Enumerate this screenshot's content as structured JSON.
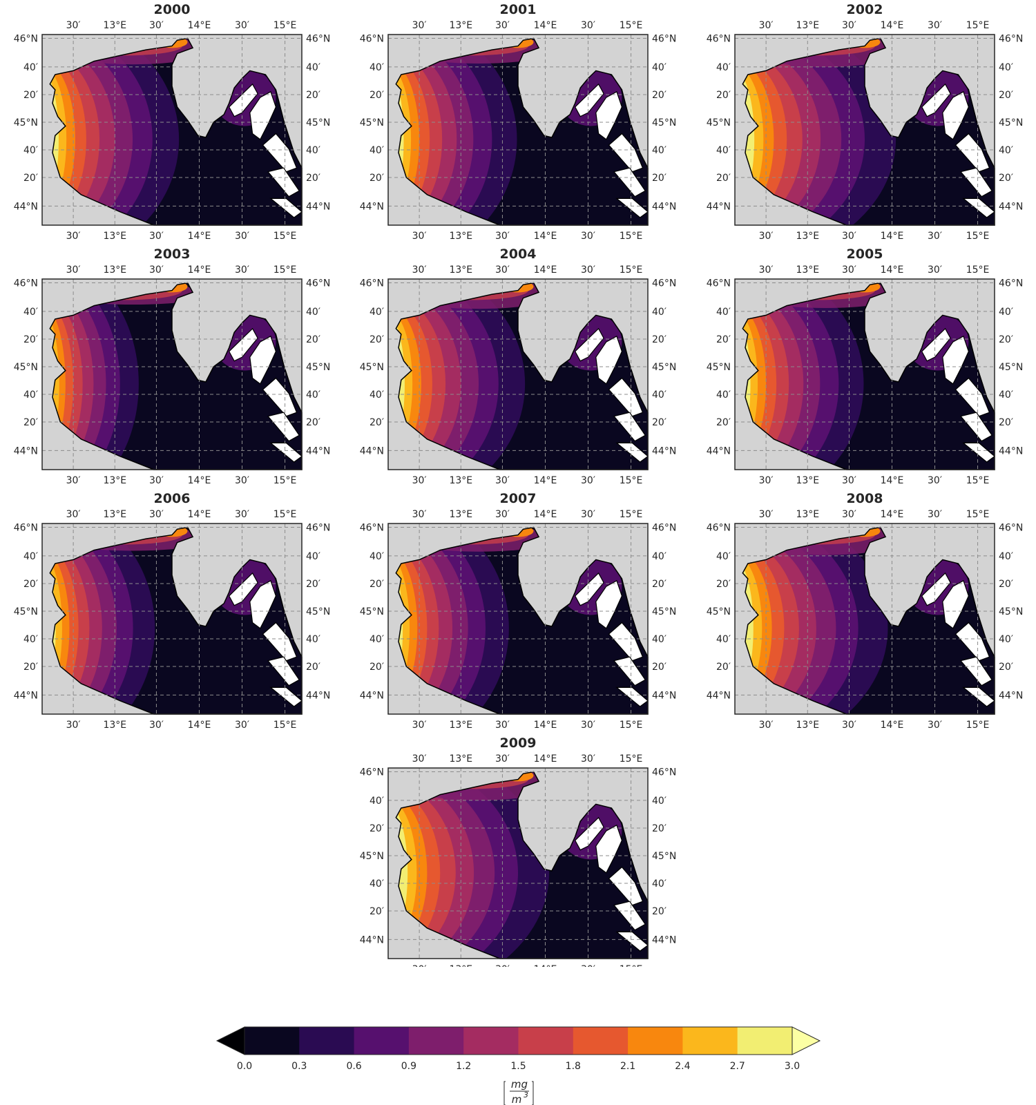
{
  "figure": {
    "years": [
      "2000",
      "2001",
      "2002",
      "2003",
      "2004",
      "2005",
      "2006",
      "2007",
      "2008",
      "2009"
    ],
    "lon_ticks": [
      "30′",
      "13°E",
      "30′",
      "14°E",
      "30′",
      "15°E"
    ],
    "lat_ticks": [
      "46°N",
      "40′",
      "20′",
      "45°N",
      "40′",
      "20′",
      "44°N"
    ],
    "land_color": "#d3d3d3",
    "extent": {
      "lon_min": 12.15,
      "lon_max": 15.25,
      "lat_min": 43.77,
      "lat_max": 46.12
    },
    "plume_intensity": [
      0.85,
      0.8,
      1.0,
      0.6,
      0.85,
      0.8,
      0.7,
      0.75,
      0.95,
      1.0
    ]
  },
  "colorbar": {
    "levels": [
      "0.0",
      "0.3",
      "0.6",
      "0.9",
      "1.2",
      "1.5",
      "1.8",
      "2.1",
      "2.4",
      "2.7",
      "3.0"
    ],
    "colors": [
      "#0a0720",
      "#2a0b52",
      "#56106e",
      "#7e1e6c",
      "#a42c61",
      "#c83f4a",
      "#e6582f",
      "#f8870e",
      "#fbb71c",
      "#f2ee72"
    ],
    "extend_low_color": "#000004",
    "extend_high_color": "#fcffa4",
    "unit_numerator": "mg",
    "unit_denominator": "m",
    "unit_exponent": "3"
  }
}
